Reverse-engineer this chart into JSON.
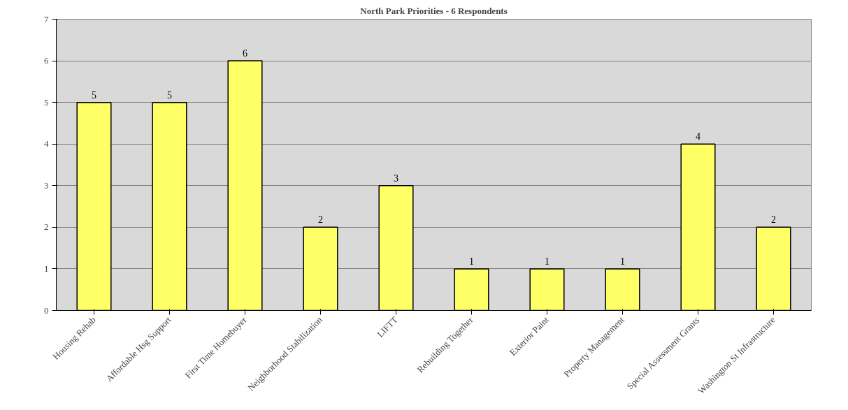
{
  "chart_data": {
    "type": "bar",
    "title": "North Park Priorities - 6 Respondents",
    "categories": [
      "Housing Rehab",
      "Affordable Hsg Support",
      "First Time Homebuyer",
      "Neighborhood Stabilization",
      "LIFTT",
      "Rebuilding Together",
      "Exterior Paint",
      "Property Management",
      "Special Assessment Grants",
      "Washington St Infrastructure"
    ],
    "values": [
      5,
      5,
      6,
      2,
      3,
      1,
      1,
      1,
      4,
      2
    ],
    "color": "#ffff66",
    "ylim": [
      0,
      7
    ],
    "yticks": [
      0,
      1,
      2,
      3,
      4,
      5,
      6,
      7
    ],
    "grid": "y",
    "data_labels": true
  }
}
